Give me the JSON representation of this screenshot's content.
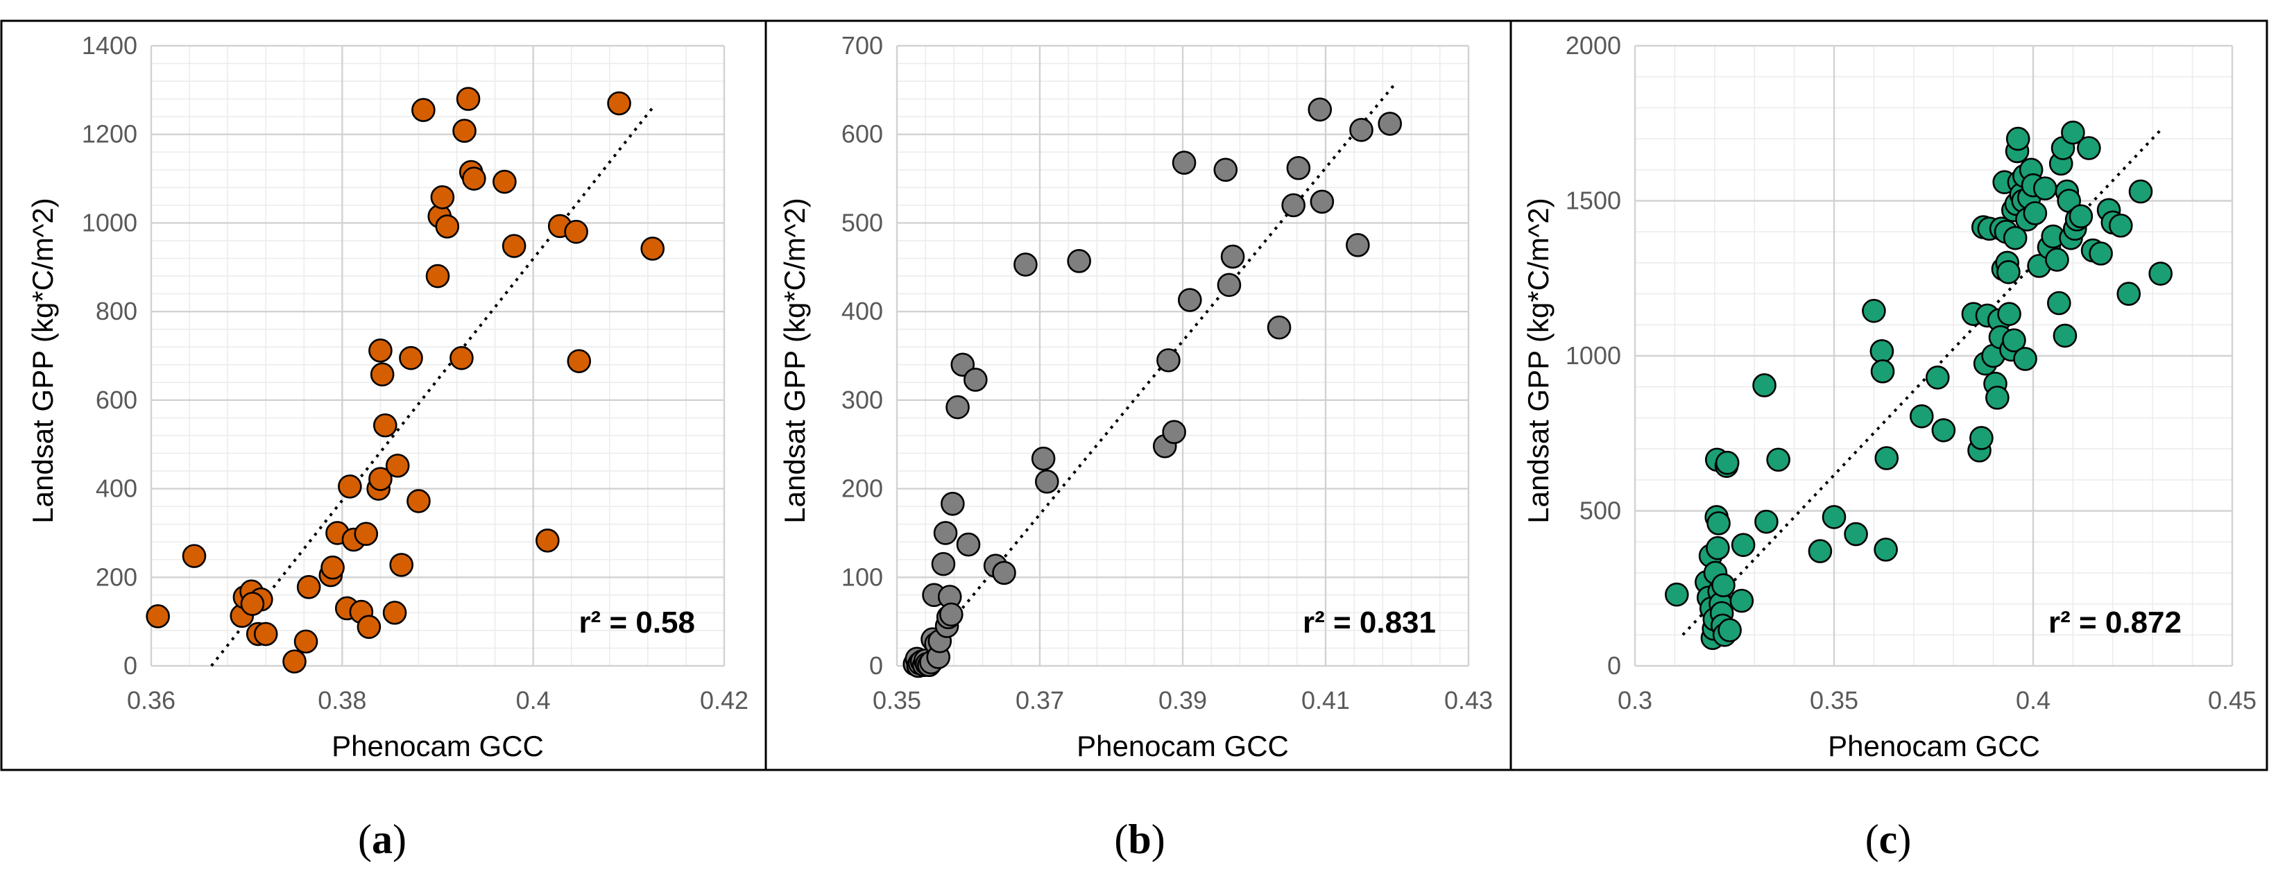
{
  "chart_data": [
    {
      "type": "scatter",
      "panel_label": "a",
      "xlabel": "Phenocam GCC",
      "ylabel": "Landsat GPP (kg*C/m^2)",
      "xlim": [
        0.36,
        0.42
      ],
      "ylim": [
        0,
        1400
      ],
      "xticks": [
        0.36,
        0.38,
        0.4,
        0.42
      ],
      "xtick_labels": [
        "0.36",
        "0.38",
        "0.4",
        "0.42"
      ],
      "yticks": [
        0,
        200,
        400,
        600,
        800,
        1000,
        1200,
        1400
      ],
      "ytick_labels": [
        "0",
        "200",
        "400",
        "600",
        "800",
        "1000",
        "1200",
        "1400"
      ],
      "marker_color": "#D55E00",
      "annotation": "r² = 0.58",
      "trendline": {
        "x": [
          0.3663,
          0.4125
        ],
        "y": [
          0,
          1260
        ]
      },
      "points": [
        [
          0.3607,
          112
        ],
        [
          0.3645,
          248
        ],
        [
          0.3695,
          113
        ],
        [
          0.3698,
          155
        ],
        [
          0.3705,
          168
        ],
        [
          0.3712,
          72
        ],
        [
          0.3715,
          150
        ],
        [
          0.372,
          72
        ],
        [
          0.3706,
          140
        ],
        [
          0.375,
          10
        ],
        [
          0.3762,
          55
        ],
        [
          0.3765,
          178
        ],
        [
          0.3788,
          205
        ],
        [
          0.379,
          222
        ],
        [
          0.3795,
          300
        ],
        [
          0.3805,
          130
        ],
        [
          0.3808,
          405
        ],
        [
          0.3812,
          285
        ],
        [
          0.382,
          122
        ],
        [
          0.3825,
          298
        ],
        [
          0.3828,
          88
        ],
        [
          0.3838,
          400
        ],
        [
          0.384,
          422
        ],
        [
          0.384,
          712
        ],
        [
          0.3842,
          658
        ],
        [
          0.3845,
          543
        ],
        [
          0.3855,
          120
        ],
        [
          0.3858,
          452
        ],
        [
          0.3862,
          228
        ],
        [
          0.3872,
          695
        ],
        [
          0.388,
          372
        ],
        [
          0.3885,
          1255
        ],
        [
          0.39,
          880
        ],
        [
          0.3902,
          1015
        ],
        [
          0.3905,
          1058
        ],
        [
          0.391,
          992
        ],
        [
          0.3925,
          695
        ],
        [
          0.3928,
          1208
        ],
        [
          0.3932,
          1280
        ],
        [
          0.3935,
          1115
        ],
        [
          0.3938,
          1100
        ],
        [
          0.397,
          1093
        ],
        [
          0.398,
          948
        ],
        [
          0.4015,
          283
        ],
        [
          0.4028,
          993
        ],
        [
          0.4045,
          980
        ],
        [
          0.4048,
          688
        ],
        [
          0.409,
          1270
        ],
        [
          0.4125,
          942
        ]
      ]
    },
    {
      "type": "scatter",
      "panel_label": "b",
      "xlabel": "Phenocam GCC",
      "ylabel": "Landsat GPP (kg*C/m^2)",
      "xlim": [
        0.35,
        0.43
      ],
      "ylim": [
        0,
        700
      ],
      "xticks": [
        0.35,
        0.37,
        0.39,
        0.41,
        0.43
      ],
      "xtick_labels": [
        "0.35",
        "0.37",
        "0.39",
        "0.41",
        "0.43"
      ],
      "yticks": [
        0,
        100,
        200,
        300,
        400,
        500,
        600,
        700
      ],
      "ytick_labels": [
        "0",
        "100",
        "200",
        "300",
        "400",
        "500",
        "600",
        "700"
      ],
      "marker_color": "#7F7F7F",
      "annotation": "r² = 0.831",
      "trendline": {
        "x": [
          0.3525,
          0.4195
        ],
        "y": [
          0,
          655
        ]
      },
      "points": [
        [
          0.3525,
          2
        ],
        [
          0.3528,
          8
        ],
        [
          0.353,
          0
        ],
        [
          0.3532,
          3
        ],
        [
          0.3535,
          5
        ],
        [
          0.3538,
          1
        ],
        [
          0.354,
          6
        ],
        [
          0.3542,
          2
        ],
        [
          0.3545,
          1
        ],
        [
          0.3548,
          4
        ],
        [
          0.355,
          30
        ],
        [
          0.3552,
          80
        ],
        [
          0.3555,
          25
        ],
        [
          0.3558,
          10
        ],
        [
          0.356,
          28
        ],
        [
          0.3565,
          115
        ],
        [
          0.3568,
          150
        ],
        [
          0.357,
          45
        ],
        [
          0.3572,
          55
        ],
        [
          0.3574,
          78
        ],
        [
          0.3576,
          58
        ],
        [
          0.3578,
          183
        ],
        [
          0.3585,
          292
        ],
        [
          0.3592,
          340
        ],
        [
          0.36,
          137
        ],
        [
          0.361,
          323
        ],
        [
          0.3638,
          113
        ],
        [
          0.365,
          105
        ],
        [
          0.368,
          453
        ],
        [
          0.3705,
          234
        ],
        [
          0.371,
          208
        ],
        [
          0.3755,
          457
        ],
        [
          0.3875,
          248
        ],
        [
          0.388,
          345
        ],
        [
          0.3888,
          264
        ],
        [
          0.3902,
          568
        ],
        [
          0.391,
          413
        ],
        [
          0.396,
          560
        ],
        [
          0.3965,
          430
        ],
        [
          0.397,
          462
        ],
        [
          0.4035,
          382
        ],
        [
          0.4055,
          520
        ],
        [
          0.4062,
          562
        ],
        [
          0.4092,
          628
        ],
        [
          0.4095,
          524
        ],
        [
          0.4145,
          475
        ],
        [
          0.415,
          605
        ],
        [
          0.419,
          612
        ]
      ]
    },
    {
      "type": "scatter",
      "panel_label": "c",
      "xlabel": "Phenocam GCC",
      "ylabel": "Landsat GPP (kg*C/m^2)",
      "xlim": [
        0.3,
        0.45
      ],
      "ylim": [
        0,
        2000
      ],
      "xticks": [
        0.3,
        0.35,
        0.4,
        0.45
      ],
      "xtick_labels": [
        "0.3",
        "0.35",
        "0.4",
        "0.45"
      ],
      "yticks": [
        0,
        500,
        1000,
        1500,
        2000
      ],
      "ytick_labels": [
        "0",
        "500",
        "1000",
        "1500",
        "2000"
      ],
      "marker_color": "#1A9E73",
      "annotation": "r² = 0.872",
      "trendline": {
        "x": [
          0.312,
          0.4325
        ],
        "y": [
          100,
          1735
        ]
      },
      "points": [
        [
          0.3105,
          230
        ],
        [
          0.318,
          270
        ],
        [
          0.3185,
          220
        ],
        [
          0.319,
          355
        ],
        [
          0.3192,
          185
        ],
        [
          0.3195,
          90
        ],
        [
          0.3198,
          120
        ],
        [
          0.32,
          150
        ],
        [
          0.3202,
          300
        ],
        [
          0.3205,
          480
        ],
        [
          0.3206,
          665
        ],
        [
          0.3208,
          380
        ],
        [
          0.321,
          460
        ],
        [
          0.3212,
          240
        ],
        [
          0.3215,
          200
        ],
        [
          0.3218,
          170
        ],
        [
          0.322,
          130
        ],
        [
          0.3222,
          260
        ],
        [
          0.3225,
          100
        ],
        [
          0.323,
          645
        ],
        [
          0.3232,
          655
        ],
        [
          0.3238,
          115
        ],
        [
          0.3268,
          210
        ],
        [
          0.3272,
          390
        ],
        [
          0.3325,
          905
        ],
        [
          0.333,
          465
        ],
        [
          0.336,
          665
        ],
        [
          0.3465,
          370
        ],
        [
          0.35,
          480
        ],
        [
          0.3555,
          425
        ],
        [
          0.36,
          1145
        ],
        [
          0.362,
          1015
        ],
        [
          0.3622,
          950
        ],
        [
          0.363,
          375
        ],
        [
          0.3632,
          670
        ],
        [
          0.372,
          805
        ],
        [
          0.376,
          930
        ],
        [
          0.3775,
          760
        ],
        [
          0.385,
          1135
        ],
        [
          0.3865,
          695
        ],
        [
          0.387,
          735
        ],
        [
          0.3875,
          1415
        ],
        [
          0.388,
          975
        ],
        [
          0.3885,
          1130
        ],
        [
          0.389,
          1410
        ],
        [
          0.39,
          1000
        ],
        [
          0.3905,
          910
        ],
        [
          0.391,
          865
        ],
        [
          0.3915,
          1115
        ],
        [
          0.3918,
          1060
        ],
        [
          0.392,
          1410
        ],
        [
          0.3925,
          1280
        ],
        [
          0.3928,
          1560
        ],
        [
          0.3932,
          1400
        ],
        [
          0.3935,
          1300
        ],
        [
          0.3938,
          1270
        ],
        [
          0.394,
          1135
        ],
        [
          0.3945,
          1020
        ],
        [
          0.395,
          1470
        ],
        [
          0.3952,
          1050
        ],
        [
          0.3955,
          1380
        ],
        [
          0.3958,
          1490
        ],
        [
          0.396,
          1660
        ],
        [
          0.3962,
          1700
        ],
        [
          0.3965,
          1560
        ],
        [
          0.397,
          1520
        ],
        [
          0.3975,
          1500
        ],
        [
          0.3978,
          1580
        ],
        [
          0.398,
          990
        ],
        [
          0.3985,
          1440
        ],
        [
          0.399,
          1510
        ],
        [
          0.3995,
          1600
        ],
        [
          0.4,
          1550
        ],
        [
          0.4005,
          1460
        ],
        [
          0.4015,
          1290
        ],
        [
          0.403,
          1540
        ],
        [
          0.404,
          1350
        ],
        [
          0.405,
          1385
        ],
        [
          0.406,
          1310
        ],
        [
          0.4065,
          1170
        ],
        [
          0.407,
          1620
        ],
        [
          0.4075,
          1670
        ],
        [
          0.408,
          1065
        ],
        [
          0.4085,
          1530
        ],
        [
          0.409,
          1500
        ],
        [
          0.4095,
          1380
        ],
        [
          0.41,
          1720
        ],
        [
          0.4105,
          1410
        ],
        [
          0.411,
          1440
        ],
        [
          0.412,
          1450
        ],
        [
          0.414,
          1670
        ],
        [
          0.415,
          1340
        ],
        [
          0.417,
          1330
        ],
        [
          0.419,
          1470
        ],
        [
          0.42,
          1430
        ],
        [
          0.422,
          1420
        ],
        [
          0.424,
          1200
        ],
        [
          0.427,
          1530
        ],
        [
          0.432,
          1265
        ]
      ]
    }
  ]
}
